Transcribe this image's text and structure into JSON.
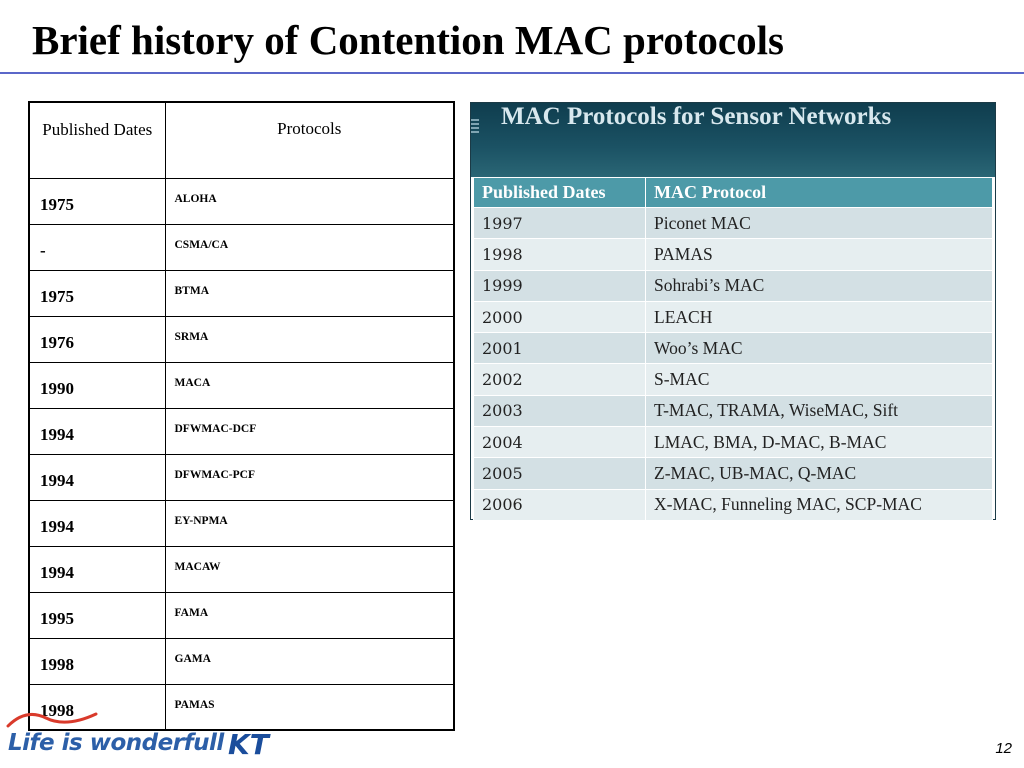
{
  "slide": {
    "title": "Brief history of Contention MAC protocols",
    "page_number": "12"
  },
  "left_table": {
    "headers": [
      "Published Dates",
      "Protocols"
    ],
    "rows": [
      {
        "date": "1975",
        "protocol": "ALOHA"
      },
      {
        "date": "-",
        "protocol": "CSMA/CA"
      },
      {
        "date": "1975",
        "protocol": "BTMA"
      },
      {
        "date": "1976",
        "protocol": "SRMA"
      },
      {
        "date": "1990",
        "protocol": "MACA"
      },
      {
        "date": "1994",
        "protocol": "DFWMAC-DCF"
      },
      {
        "date": "1994",
        "protocol": "DFWMAC-PCF"
      },
      {
        "date": "1994",
        "protocol": "EY-NPMA"
      },
      {
        "date": "1994",
        "protocol": "MACAW"
      },
      {
        "date": "1995",
        "protocol": "FAMA"
      },
      {
        "date": "1998",
        "protocol": "GAMA"
      },
      {
        "date": "1998",
        "protocol": "PAMAS"
      }
    ]
  },
  "sensor_panel": {
    "title": "MAC Protocols for Sensor Networks",
    "headers": [
      "Published Dates",
      "MAC Protocol"
    ],
    "rows": [
      {
        "date": "1997",
        "protocol": "Piconet MAC"
      },
      {
        "date": "1998",
        "protocol": "PAMAS"
      },
      {
        "date": "1999",
        "protocol": "Sohrabi’s MAC"
      },
      {
        "date": "2000",
        "protocol": "LEACH"
      },
      {
        "date": "2001",
        "protocol": "Woo’s MAC"
      },
      {
        "date": "2002",
        "protocol": "S-MAC"
      },
      {
        "date": "2003",
        "protocol": "T-MAC, TRAMA, WiseMAC, Sift"
      },
      {
        "date": "2004",
        "protocol": "LMAC, BMA, D-MAC, B-MAC"
      },
      {
        "date": "2005",
        "protocol": "Z-MAC, UB-MAC, Q-MAC"
      },
      {
        "date": "2006",
        "protocol": "X-MAC, Funneling MAC, SCP-MAC"
      }
    ]
  },
  "footer": {
    "tagline": "Life is wonderfull",
    "brand": "KT"
  },
  "colors": {
    "title_rule": "#5b67c9",
    "sensor_header_bg": "#1b5264",
    "sensor_table_header": "#4d9aa8",
    "tagline": "#2c5fa8"
  }
}
